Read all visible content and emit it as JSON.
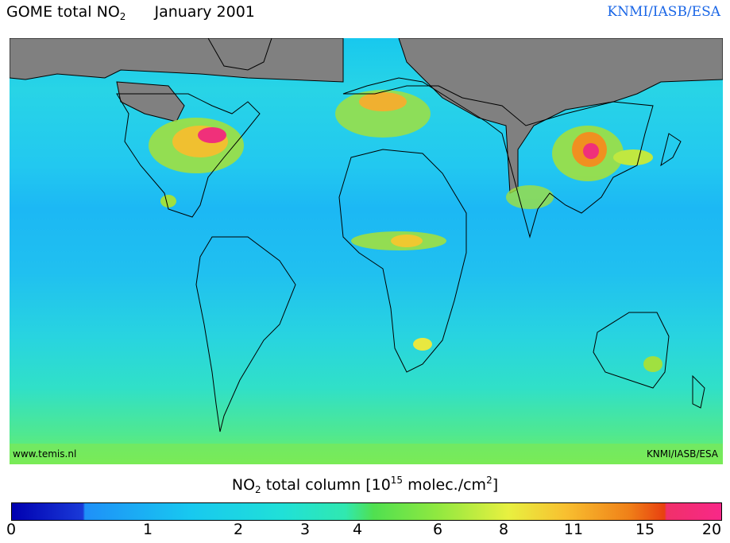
{
  "title": {
    "product": "GOME total NO",
    "subscript": "2",
    "date": "January 2001"
  },
  "credit_top": "KNMI/IASB/ESA",
  "map": {
    "corner_left": "www.temis.nl",
    "corner_right": "KNMI/IASB/ESA",
    "colors": {
      "land_no_data": "#808080",
      "hotspot_high": "#f0307a",
      "hotspot_mid": "#f09020",
      "enhanced": "#a0e040"
    }
  },
  "colorbar": {
    "label_prefix": "NO",
    "label_sub": "2",
    "label_mid": " total column [10",
    "label_sup": "15",
    "label_mid2": " molec./cm",
    "label_sup2": "2",
    "label_end": "]",
    "ticks": [
      "0",
      "1",
      "2",
      "3",
      "4",
      "6",
      "8",
      "11",
      "15",
      "20"
    ]
  }
}
